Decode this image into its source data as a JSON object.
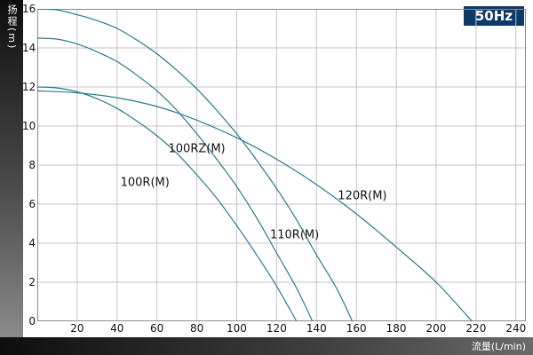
{
  "header": {
    "freq_badge": "50Hz",
    "badge_color": "#0f3a68"
  },
  "axes": {
    "y_label": "扬程(m)",
    "x_label": "流量(L/min)"
  },
  "colors": {
    "curve": "#2b7990",
    "grid": "#c4c4c4",
    "border": "#8c8c8c",
    "tick_text": "#111111"
  },
  "chart_data": {
    "type": "line",
    "title": "",
    "xlabel": "流量(L/min)",
    "ylabel": "扬程(m)",
    "xlim": [
      0,
      245
    ],
    "ylim": [
      0,
      16
    ],
    "xticks": [
      20,
      40,
      60,
      80,
      100,
      120,
      140,
      160,
      180,
      200,
      220,
      240
    ],
    "yticks": [
      0,
      2,
      4,
      6,
      8,
      10,
      12,
      14,
      16
    ],
    "grid": true,
    "legend_position": "inline-labels",
    "series": [
      {
        "name": "100R(M)",
        "label_pos": {
          "x": 54,
          "y": 7.1
        },
        "points": [
          [
            0,
            12
          ],
          [
            10,
            11.95
          ],
          [
            20,
            11.75
          ],
          [
            30,
            11.4
          ],
          [
            40,
            10.9
          ],
          [
            50,
            10.25
          ],
          [
            60,
            9.5
          ],
          [
            70,
            8.6
          ],
          [
            80,
            7.5
          ],
          [
            90,
            6.3
          ],
          [
            100,
            4.9
          ],
          [
            110,
            3.4
          ],
          [
            120,
            1.8
          ],
          [
            130,
            0
          ]
        ]
      },
      {
        "name": "100RZ(M)",
        "label_pos": {
          "x": 80,
          "y": 8.8
        },
        "points": [
          [
            0,
            14.5
          ],
          [
            10,
            14.45
          ],
          [
            20,
            14.2
          ],
          [
            30,
            13.8
          ],
          [
            40,
            13.3
          ],
          [
            50,
            12.6
          ],
          [
            60,
            11.8
          ],
          [
            70,
            10.8
          ],
          [
            80,
            9.6
          ],
          [
            90,
            8.3
          ],
          [
            100,
            6.9
          ],
          [
            110,
            5.3
          ],
          [
            120,
            3.5
          ],
          [
            130,
            1.7
          ],
          [
            138,
            0
          ]
        ]
      },
      {
        "name": "110R(M)",
        "label_pos": {
          "x": 129,
          "y": 4.4
        },
        "points": [
          [
            0,
            16
          ],
          [
            10,
            15.95
          ],
          [
            20,
            15.7
          ],
          [
            30,
            15.4
          ],
          [
            40,
            15
          ],
          [
            50,
            14.4
          ],
          [
            60,
            13.7
          ],
          [
            70,
            12.85
          ],
          [
            80,
            11.9
          ],
          [
            90,
            10.8
          ],
          [
            100,
            9.6
          ],
          [
            110,
            8.25
          ],
          [
            120,
            6.8
          ],
          [
            130,
            5.2
          ],
          [
            140,
            3.4
          ],
          [
            150,
            1.7
          ],
          [
            158,
            0
          ]
        ]
      },
      {
        "name": "120R(M)",
        "label_pos": {
          "x": 163,
          "y": 6.4
        },
        "points": [
          [
            0,
            11.8
          ],
          [
            20,
            11.7
          ],
          [
            40,
            11.45
          ],
          [
            60,
            11.0
          ],
          [
            80,
            10.3
          ],
          [
            100,
            9.4
          ],
          [
            120,
            8.3
          ],
          [
            140,
            7.0
          ],
          [
            160,
            5.5
          ],
          [
            180,
            3.8
          ],
          [
            200,
            2.0
          ],
          [
            218,
            0
          ]
        ]
      }
    ]
  },
  "plot_geometry_note": "head-vs-flow pump performance curves"
}
